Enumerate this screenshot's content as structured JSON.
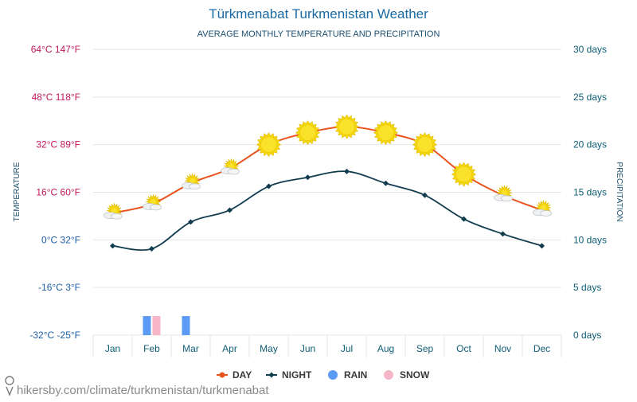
{
  "chart_data": {
    "type": "line",
    "title": "Türkmenabat Turkmenistan Weather",
    "subtitle": "AVERAGE MONTHLY TEMPERATURE AND PRECIPITATION",
    "categories": [
      "Jan",
      "Feb",
      "Mar",
      "Apr",
      "May",
      "Jun",
      "Jul",
      "Aug",
      "Sep",
      "Oct",
      "Nov",
      "Dec"
    ],
    "y_left": {
      "label": "TEMPERATURE",
      "unit": "°C",
      "range": [
        -32,
        64
      ],
      "ticks": [
        {
          "value": 64,
          "label": "64°C 147°F"
        },
        {
          "value": 48,
          "label": "48°C 118°F"
        },
        {
          "value": 32,
          "label": "32°C 89°F"
        },
        {
          "value": 16,
          "label": "16°C 60°F"
        },
        {
          "value": 0,
          "label": "0°C 32°F"
        },
        {
          "value": -16,
          "label": "-16°C 3°F"
        },
        {
          "value": -32,
          "label": "-32°C -25°F"
        }
      ]
    },
    "y_right": {
      "label": "PRECIPITATION",
      "unit": "days",
      "range": [
        0,
        30
      ],
      "ticks": [
        {
          "value": 30,
          "label": "30 days"
        },
        {
          "value": 25,
          "label": "25 days"
        },
        {
          "value": 20,
          "label": "20 days"
        },
        {
          "value": 15,
          "label": "15 days"
        },
        {
          "value": 10,
          "label": "10 days"
        },
        {
          "value": 5,
          "label": "5 days"
        },
        {
          "value": 0,
          "label": "0 days"
        }
      ]
    },
    "series": [
      {
        "name": "DAY",
        "color": "#e8531d",
        "values": [
          9,
          12,
          19,
          24,
          32,
          36,
          38,
          36,
          32,
          22,
          15,
          10
        ]
      },
      {
        "name": "NIGHT",
        "color": "#113c4f",
        "values": [
          -2,
          -3,
          6,
          10,
          18,
          21,
          23,
          19,
          15,
          7,
          2,
          -2
        ]
      },
      {
        "name": "RAIN",
        "color": "#5b9bf3",
        "type": "bar",
        "values": [
          0,
          2,
          2,
          0,
          0,
          0,
          0,
          0,
          0,
          0,
          0,
          0
        ]
      },
      {
        "name": "SNOW",
        "color": "#f7b6c8",
        "type": "bar",
        "values": [
          0,
          2,
          0,
          0,
          0,
          0,
          0,
          0,
          0,
          0,
          0,
          0
        ]
      }
    ],
    "weather_icons": [
      "partly-cloudy-icon",
      "partly-cloudy-icon",
      "partly-cloudy-icon",
      "partly-cloudy-icon",
      "sun-icon",
      "sun-icon",
      "sun-icon",
      "sun-icon",
      "sun-icon",
      "sun-icon",
      "partly-cloudy-icon",
      "partly-cloudy-icon"
    ],
    "grid": true,
    "legend_position": "bottom-center"
  },
  "colors": {
    "title": "#1a6aa3",
    "left_axis": "#c2185b",
    "left_axis_cold": "#1f5fa8",
    "right_axis": "#0d5d75",
    "month_labels": "#0d5d75",
    "grid": "#e6e6e6"
  },
  "footer": {
    "url": "hikersby.com/climate/turkmenistan/turkmenabat",
    "icon": "location-pin-icon"
  }
}
